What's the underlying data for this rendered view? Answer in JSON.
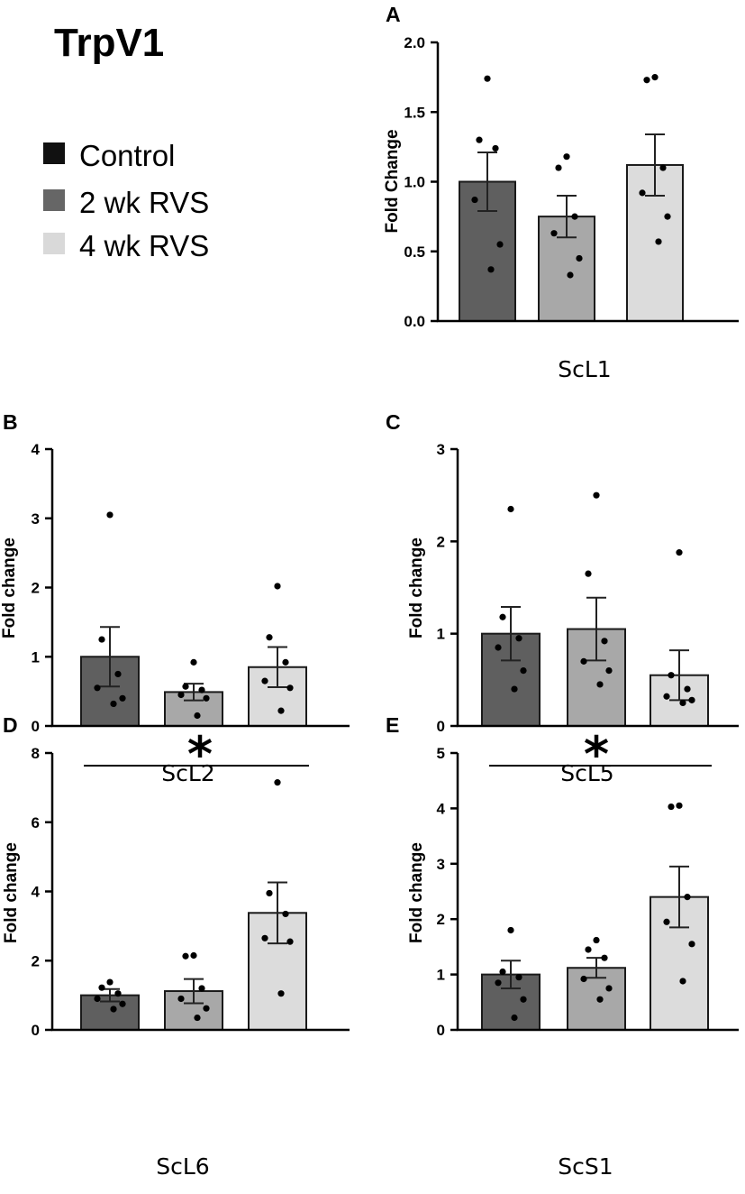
{
  "figure": {
    "title": "TrpV1",
    "legend": [
      {
        "label": "Control",
        "color": "#111111"
      },
      {
        "label": "2 wk RVS",
        "color": "#666666"
      },
      {
        "label": "4 wk RVS",
        "color": "#d9d9d9"
      }
    ]
  },
  "chart_data": [
    {
      "panel": "A",
      "type": "bar",
      "title": "ScL1",
      "xlabel": "ScL1",
      "ylabel": "Fold Change",
      "ylim": [
        0,
        2
      ],
      "yticks": [
        "0.0",
        "0.5",
        "1.0",
        "1.5",
        "2.0"
      ],
      "ytick_values": [
        0,
        0.5,
        1.0,
        1.5,
        2.0
      ],
      "categories": [
        "Control",
        "2 wk RVS",
        "4 wk RVS"
      ],
      "colors": [
        "#5f5f5f",
        "#a8a8a8",
        "#dcdcdc"
      ],
      "values": [
        1.0,
        0.75,
        1.12
      ],
      "sem": [
        0.21,
        0.15,
        0.22
      ],
      "points": [
        [
          1.74,
          1.3,
          1.24,
          0.87,
          0.55,
          0.37
        ],
        [
          1.18,
          1.1,
          0.75,
          0.63,
          0.45,
          0.33
        ],
        [
          1.75,
          1.73,
          1.1,
          0.92,
          0.75,
          0.57
        ]
      ],
      "significance": null
    },
    {
      "panel": "B",
      "type": "bar",
      "title": "ScL2",
      "xlabel": "ScL2",
      "ylabel": "Fold change",
      "ylim": [
        0,
        4
      ],
      "yticks": [
        "0",
        "1",
        "2",
        "3",
        "4"
      ],
      "ytick_values": [
        0,
        1,
        2,
        3,
        4
      ],
      "categories": [
        "Control",
        "2 wk RVS",
        "4 wk RVS"
      ],
      "colors": [
        "#5f5f5f",
        "#a8a8a8",
        "#dcdcdc"
      ],
      "values": [
        1.0,
        0.49,
        0.85
      ],
      "sem": [
        0.43,
        0.12,
        0.29
      ],
      "points": [
        [
          3.05,
          1.25,
          0.75,
          0.55,
          0.4,
          0.32
        ],
        [
          0.92,
          0.57,
          0.52,
          0.45,
          0.4,
          0.15
        ],
        [
          2.02,
          1.28,
          0.92,
          0.65,
          0.55,
          0.22
        ]
      ],
      "significance": null
    },
    {
      "panel": "C",
      "type": "bar",
      "title": "ScL5",
      "xlabel": "ScL5",
      "ylabel": "Fold change",
      "ylim": [
        0,
        3
      ],
      "yticks": [
        "0",
        "1",
        "2",
        "3"
      ],
      "ytick_values": [
        0,
        1,
        2,
        3
      ],
      "categories": [
        "Control",
        "2 wk RVS",
        "4 wk RVS"
      ],
      "colors": [
        "#5f5f5f",
        "#a8a8a8",
        "#dcdcdc"
      ],
      "values": [
        1.0,
        1.05,
        0.55
      ],
      "sem": [
        0.29,
        0.34,
        0.27
      ],
      "points": [
        [
          2.35,
          1.18,
          0.95,
          0.85,
          0.6,
          0.4
        ],
        [
          2.5,
          1.65,
          0.92,
          0.7,
          0.6,
          0.45
        ],
        [
          1.88,
          0.55,
          0.4,
          0.32,
          0.28,
          0.25
        ]
      ],
      "significance": null
    },
    {
      "panel": "D",
      "type": "bar",
      "title": "ScL6",
      "xlabel": "ScL6",
      "ylabel": "Fold change",
      "ylim": [
        0,
        8
      ],
      "yticks": [
        "0",
        "2",
        "4",
        "6",
        "8"
      ],
      "ytick_values": [
        0,
        2,
        4,
        6,
        8
      ],
      "categories": [
        "Control",
        "2 wk RVS",
        "4 wk RVS"
      ],
      "colors": [
        "#5f5f5f",
        "#a8a8a8",
        "#dcdcdc"
      ],
      "values": [
        1.0,
        1.12,
        3.38
      ],
      "sem": [
        0.18,
        0.35,
        0.88
      ],
      "points": [
        [
          1.38,
          1.22,
          1.05,
          0.9,
          0.75,
          0.6
        ],
        [
          2.15,
          2.13,
          1.2,
          0.9,
          0.62,
          0.35
        ],
        [
          7.15,
          3.95,
          3.35,
          2.65,
          2.55,
          1.05
        ]
      ],
      "significance": "*"
    },
    {
      "panel": "E",
      "type": "bar",
      "title": "ScS1",
      "xlabel": "ScS1",
      "ylabel": "Fold change",
      "ylim": [
        0,
        5
      ],
      "yticks": [
        "0",
        "1",
        "2",
        "3",
        "4",
        "5"
      ],
      "ytick_values": [
        0,
        1,
        2,
        3,
        4,
        5
      ],
      "categories": [
        "Control",
        "2 wk RVS",
        "4 wk RVS"
      ],
      "colors": [
        "#5f5f5f",
        "#a8a8a8",
        "#dcdcdc"
      ],
      "values": [
        1.0,
        1.12,
        2.4
      ],
      "sem": [
        0.25,
        0.18,
        0.55
      ],
      "points": [
        [
          1.8,
          1.05,
          0.95,
          0.85,
          0.55,
          0.22
        ],
        [
          1.62,
          1.45,
          1.3,
          0.92,
          0.75,
          0.55
        ],
        [
          4.05,
          4.03,
          2.4,
          1.95,
          1.55,
          0.88
        ]
      ],
      "significance": "*"
    }
  ]
}
